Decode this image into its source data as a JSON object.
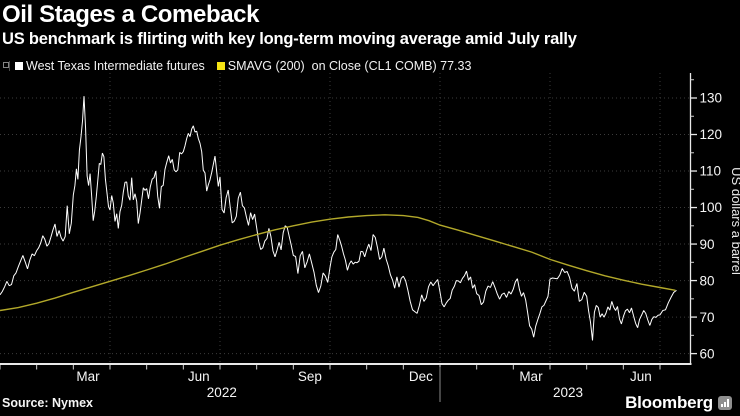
{
  "header": {
    "title": "Oil Stages a Comeback",
    "subtitle": "US benchmark is flirting with key long-term moving average amid July rally"
  },
  "legend": [
    {
      "label": "West Texas Intermediate futures",
      "color": "#ffffff"
    },
    {
      "label": "SMAVG (200)  on Close (CL1 COMB) 77.33",
      "color": "#f6e413"
    }
  ],
  "footer": {
    "source": "Source: Nymex",
    "brand": "Bloomberg"
  },
  "chart_data": {
    "type": "line",
    "title": "Oil Stages a Comeback",
    "subtitle": "US benchmark is flirting with key long-term moving average amid July rally",
    "xlabel": "",
    "ylabel": "US dollars a barrel",
    "x_range": "Jan 2022 - mid Jul 2023",
    "ylim": [
      57.5,
      137
    ],
    "y_ticks": [
      60,
      70,
      80,
      90,
      100,
      110,
      120,
      130
    ],
    "y_minor_ticks": [
      65,
      75,
      85,
      95,
      105,
      115,
      125,
      135
    ],
    "grid": true,
    "grid_quarter_months": [
      3,
      6,
      9,
      12,
      15,
      18
    ],
    "x_month_labels": [
      {
        "label": "Mar",
        "t": 2.4
      },
      {
        "label": "Jun",
        "t": 5.42
      },
      {
        "label": "Sep",
        "t": 8.45
      },
      {
        "label": "Dec",
        "t": 11.48
      },
      {
        "label": "Mar",
        "t": 14.48
      },
      {
        "label": "Jun",
        "t": 17.48
      }
    ],
    "x_year_labels": [
      {
        "label": "2022",
        "t": 6.05
      },
      {
        "label": "2023",
        "t": 15.49
      }
    ],
    "year_divider_t": 12,
    "legend_position": "top",
    "series": [
      {
        "name": "West Texas Intermediate futures",
        "color": "#ffffff",
        "units": "USD/barrel",
        "months": [
          {
            "m": 0,
            "vals": [
              76.1,
              77.0,
              78.3,
              79.8,
              78.6,
              78.9,
              81.3,
              82.1,
              83.8,
              85.4,
              86.9,
              85.1,
              83.2,
              85.6,
              87.3,
              86.8
            ]
          },
          {
            "m": 1,
            "vals": [
              88.2,
              89.0,
              90.3,
              92.3,
              91.3,
              89.4,
              90.1,
              91.9,
              93.9,
              95.5,
              92.1,
              93.7,
              91.8,
              90.8,
              92.1,
              100.5,
              92.8,
              95.7
            ]
          },
          {
            "m": 2,
            "vals": [
              103.4,
              106.0,
              110.6,
              107.7,
              115.7,
              119.4,
              123.7,
              130.5,
              121.6,
              108.7,
              106.0,
              109.3,
              103.0,
              96.4,
              99.0,
              103.0,
              107.5,
              112.1,
              111.8,
              114.9,
              113.9,
              107.8,
              104.2,
              100.3
            ]
          },
          {
            "m": 3,
            "vals": [
              99.3,
              103.3,
              101.2,
              96.2,
              98.3,
              94.3,
              98.9,
              100.6,
              104.2,
              106.9,
              107.0,
              103.2,
              102.0,
              108.2,
              102.1,
              103.8,
              101.7,
              95.6,
              98.5,
              102.0,
              105.4,
              104.7
            ]
          },
          {
            "m": 4,
            "vals": [
              105.2,
              102.4,
              105.7,
              107.8,
              108.2,
              110.0,
              103.1,
              99.8,
              105.7,
              106.1,
              110.5,
              112.4,
              114.2,
              112.2,
              113.2,
              110.3,
              109.8,
              110.3,
              115.1,
              114.7
            ]
          },
          {
            "m": 5,
            "vals": [
              115.3,
              116.9,
              118.9,
              120.3,
              119.4,
              121.5,
              122.4,
              120.7,
              120.9,
              118.9,
              117.6,
              115.3,
              110.2,
              109.5,
              104.5,
              106.2,
              107.6,
              109.6,
              111.8,
              114.1,
              109.8,
              105.8
            ]
          },
          {
            "m": 6,
            "vals": [
              108.4,
              99.5,
              98.5,
              102.7,
              104.8,
              100.1,
              95.8,
              96.3,
              97.6,
              102.6,
              104.2,
              100.5,
              99.9,
              97.3,
              95.1,
              98.6,
              96.7,
              98.2
            ]
          },
          {
            "m": 7,
            "vals": [
              94.4,
              90.7,
              88.5,
              89.0,
              90.8,
              91.5,
              94.3,
              92.1,
              88.1,
              86.5,
              88.3,
              90.5,
              88.4,
              93.1,
              95.0,
              94.6,
              92.0,
              89.6
            ]
          },
          {
            "m": 8,
            "vals": [
              86.9,
              86.6,
              81.9,
              86.8,
              88.0,
              83.5,
              85.1,
              87.3,
              84.8,
              82.3,
              78.7,
              76.7,
              78.5,
              82.1,
              81.2,
              79.5
            ]
          },
          {
            "m": 9,
            "vals": [
              83.6,
              86.5,
              87.8,
              88.5,
              92.6,
              91.1,
              89.4,
              87.3,
              85.6,
              82.8,
              84.5,
              85.4,
              84.5,
              85.0,
              84.9,
              85.3,
              88.0,
              87.9,
              86.5
            ]
          },
          {
            "m": 10,
            "vals": [
              88.4,
              90.0,
              88.2,
              92.6,
              91.8,
              89.0,
              85.8,
              86.5,
              88.9,
              85.9,
              84.1,
              81.6,
              80.1,
              77.9,
              81.0,
              78.2,
              80.6
            ]
          },
          {
            "m": 11,
            "vals": [
              81.2,
              80.0,
              77.3,
              74.3,
              72.0,
              71.5,
              71.0,
              73.2,
              76.1,
              74.3,
              75.3,
              78.3,
              79.6,
              78.6,
              79.5,
              80.3
            ]
          },
          {
            "m": 12,
            "vals": [
              76.9,
              73.7,
              72.8,
              73.8,
              74.6,
              75.1,
              77.4,
              78.4,
              80.0,
              79.9,
              79.4,
              80.6,
              81.3,
              82.6,
              80.1,
              81.0,
              77.9,
              78.9
            ]
          },
          {
            "m": 13,
            "vals": [
              76.4,
              75.9,
              73.4,
              74.1,
              77.1,
              78.5,
              78.1,
              79.7,
              78.1,
              76.3,
              74.9,
              76.2,
              76.6,
              75.4,
              77.0,
              76.3
            ]
          },
          {
            "m": 14,
            "vals": [
              77.7,
              79.7,
              80.5,
              77.6,
              75.7,
              76.7,
              74.8,
              71.3,
              67.6,
              66.7,
              64.5,
              67.5,
              69.3,
              70.9,
              72.8,
              73.2,
              74.4,
              75.7
            ]
          },
          {
            "m": 15,
            "vals": [
              80.4,
              80.7,
              80.6,
              80.5,
              81.5,
              83.3,
              82.2,
              82.5,
              80.8,
              77.9,
              77.1,
              79.2,
              74.3,
              74.8,
              76.8
            ]
          },
          {
            "m": 16,
            "vals": [
              75.7,
              71.7,
              68.6,
              63.6,
              71.3,
              73.2,
              72.6,
              70.0,
              70.9,
              70.0,
              71.1,
              72.8,
              71.9,
              74.3,
              72.7,
              71.8,
              72.9,
              69.5,
              68.1
            ]
          },
          {
            "m": 17,
            "vals": [
              70.1,
              71.7,
              72.2,
              71.2,
              72.5,
              70.4,
              68.3,
              67.1,
              69.4,
              70.6,
              71.8,
              71.0,
              69.2,
              67.7,
              69.4,
              70.1,
              69.9,
              70.5
            ]
          },
          {
            "m": 18,
            "span": 0.45,
            "vals": [
              70.6,
              71.8,
              72.0,
              73.9,
              75.4,
              76.8,
              77.3
            ]
          }
        ]
      },
      {
        "name": "SMAVG (200) on Close (CL1 COMB)",
        "color": "#b2a82a",
        "last_value": 77.33,
        "points": [
          [
            0,
            71.8
          ],
          [
            0.5,
            72.6
          ],
          [
            1,
            73.8
          ],
          [
            1.5,
            75.2
          ],
          [
            2,
            76.8
          ],
          [
            2.5,
            78.3
          ],
          [
            3,
            79.8
          ],
          [
            3.5,
            81.3
          ],
          [
            4,
            82.9
          ],
          [
            4.5,
            84.5
          ],
          [
            5,
            86.3
          ],
          [
            5.5,
            88.0
          ],
          [
            6,
            89.7
          ],
          [
            6.5,
            91.2
          ],
          [
            7,
            92.6
          ],
          [
            7.5,
            93.9
          ],
          [
            8,
            95.0
          ],
          [
            8.5,
            96.0
          ],
          [
            9,
            96.8
          ],
          [
            9.5,
            97.4
          ],
          [
            10,
            97.8
          ],
          [
            10.5,
            98.0
          ],
          [
            11,
            97.8
          ],
          [
            11.4,
            97.3
          ],
          [
            11.7,
            96.4
          ],
          [
            12,
            95.2
          ],
          [
            12.5,
            93.8
          ],
          [
            13,
            92.3
          ],
          [
            13.5,
            90.8
          ],
          [
            14,
            89.3
          ],
          [
            14.5,
            87.8
          ],
          [
            15,
            85.8
          ],
          [
            15.5,
            84.2
          ],
          [
            16,
            82.7
          ],
          [
            16.5,
            81.3
          ],
          [
            17,
            80.1
          ],
          [
            17.5,
            79.0
          ],
          [
            18,
            78.1
          ],
          [
            18.42,
            77.33
          ]
        ]
      }
    ]
  }
}
